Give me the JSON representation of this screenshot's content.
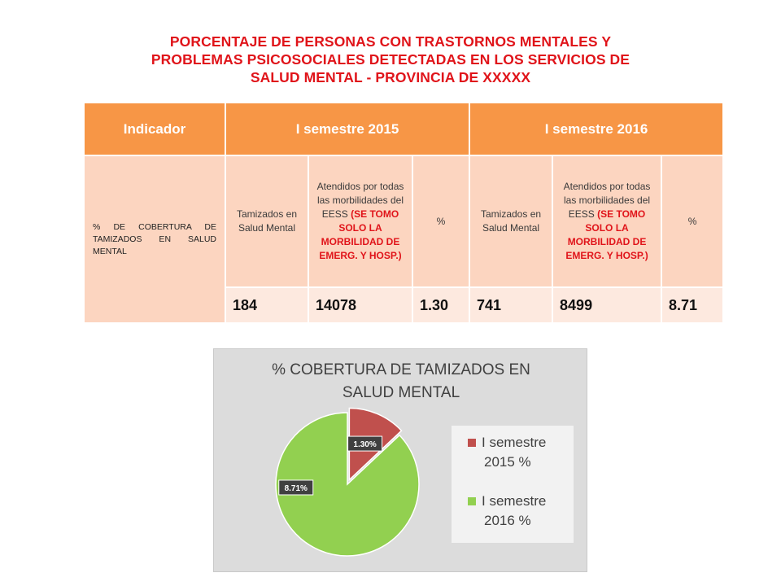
{
  "title": {
    "line1": "PORCENTAJE DE PERSONAS CON TRASTORNOS MENTALES Y",
    "line2": "PROBLEMAS PSICOSOCIALES  DETECTADAS EN LOS SERVICIOS DE",
    "line3": "SALUD MENTAL - PROVINCIA DE XXXXX"
  },
  "table": {
    "headers": [
      "Indicador",
      "I semestre 2015",
      "I semestre 2016"
    ],
    "indicator": "% DE COBERTURA DE TAMIZADOS EN SALUD MENTAL",
    "sub_2015": {
      "tamizados": "Tamizados en Salud Mental",
      "atendidos": "Atendidos por todas las morbilidades del EESS",
      "atendidos_note": "(SE TOMO SOLO LA MORBILIDAD DE EMERG. Y HOSP.)",
      "pct": "%"
    },
    "sub_2016": {
      "tamizados": "Tamizados en Salud Mental",
      "atendidos": "Atendidos por todas las morbilidades del EESS",
      "atendidos_note": "(SE TOMO SOLO LA MORBILIDAD DE EMERG. Y HOSP.)",
      "pct": "%"
    },
    "values": [
      "184",
      "14078",
      "1.30",
      "741",
      "8499",
      "8.71"
    ]
  },
  "colors": {
    "header": "#f79646",
    "sub_bg": "#fcd5c0",
    "row_bg": "#fde9df",
    "title_red": "#e0141a",
    "slice_2015": "#c0504d",
    "slice_2016": "#92d050",
    "chart_bg": "#dcdcdc"
  },
  "chart_data": {
    "type": "pie",
    "title_line1": "% COBERTURA DE TAMIZADOS EN",
    "title_line2": "SALUD MENTAL",
    "slices": [
      {
        "label_line1": "I semestre",
        "label_line2": "2015 %",
        "value": 1.3,
        "data_label": "1.30%",
        "color": "#c0504d"
      },
      {
        "label_line1": "I semestre",
        "label_line2": "2016 %",
        "value": 8.71,
        "data_label": "8.71%",
        "color": "#92d050"
      }
    ],
    "legend_position": "right"
  }
}
